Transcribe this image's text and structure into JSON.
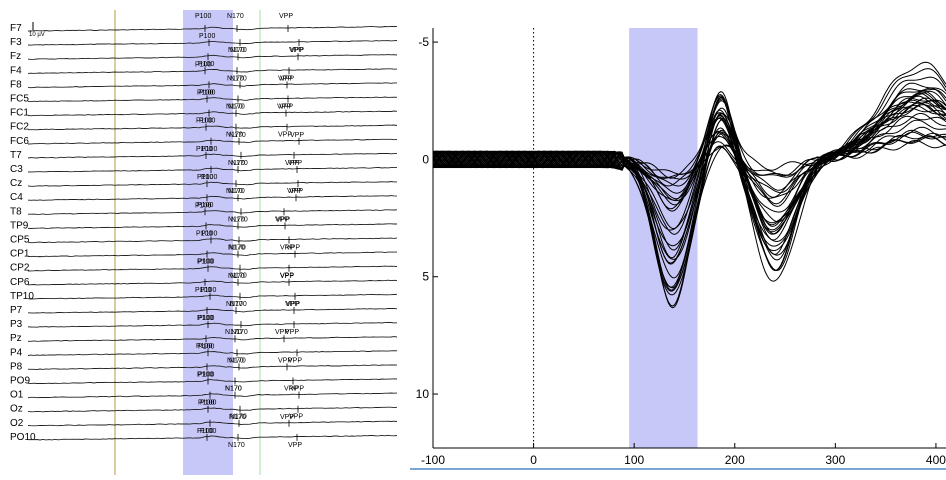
{
  "chart_data": [
    {
      "type": "line",
      "panel": "channel-traces",
      "amplitude_scale_label": "10 µV",
      "peak_labels": [
        "P100",
        "N170",
        "VPP"
      ],
      "channels": [
        "F7",
        "F3",
        "Fz",
        "F4",
        "F8",
        "FC5",
        "FC1",
        "FC2",
        "FC6",
        "T7",
        "C3",
        "Cz",
        "C4",
        "T8",
        "TP9",
        "CP5",
        "CP1",
        "CP2",
        "CP6",
        "TP10",
        "P7",
        "P3",
        "Pz",
        "P4",
        "P8",
        "PO9",
        "O1",
        "Oz",
        "O2",
        "PO10"
      ],
      "highlight_color": "#c8c8f8"
    },
    {
      "type": "line",
      "panel": "butterfly-plot",
      "x_ticks": [
        -100,
        0,
        100,
        200,
        300,
        400
      ],
      "y_ticks": [
        -5,
        0,
        5,
        10
      ],
      "xlim": [
        -100,
        410
      ],
      "ylim": [
        -5.6,
        12.3
      ],
      "y_inverted": true,
      "highlight_window": [
        95,
        163
      ],
      "highlight_color": "#c8c8f8",
      "stimulus_line_x": 0,
      "grid": false
    }
  ]
}
